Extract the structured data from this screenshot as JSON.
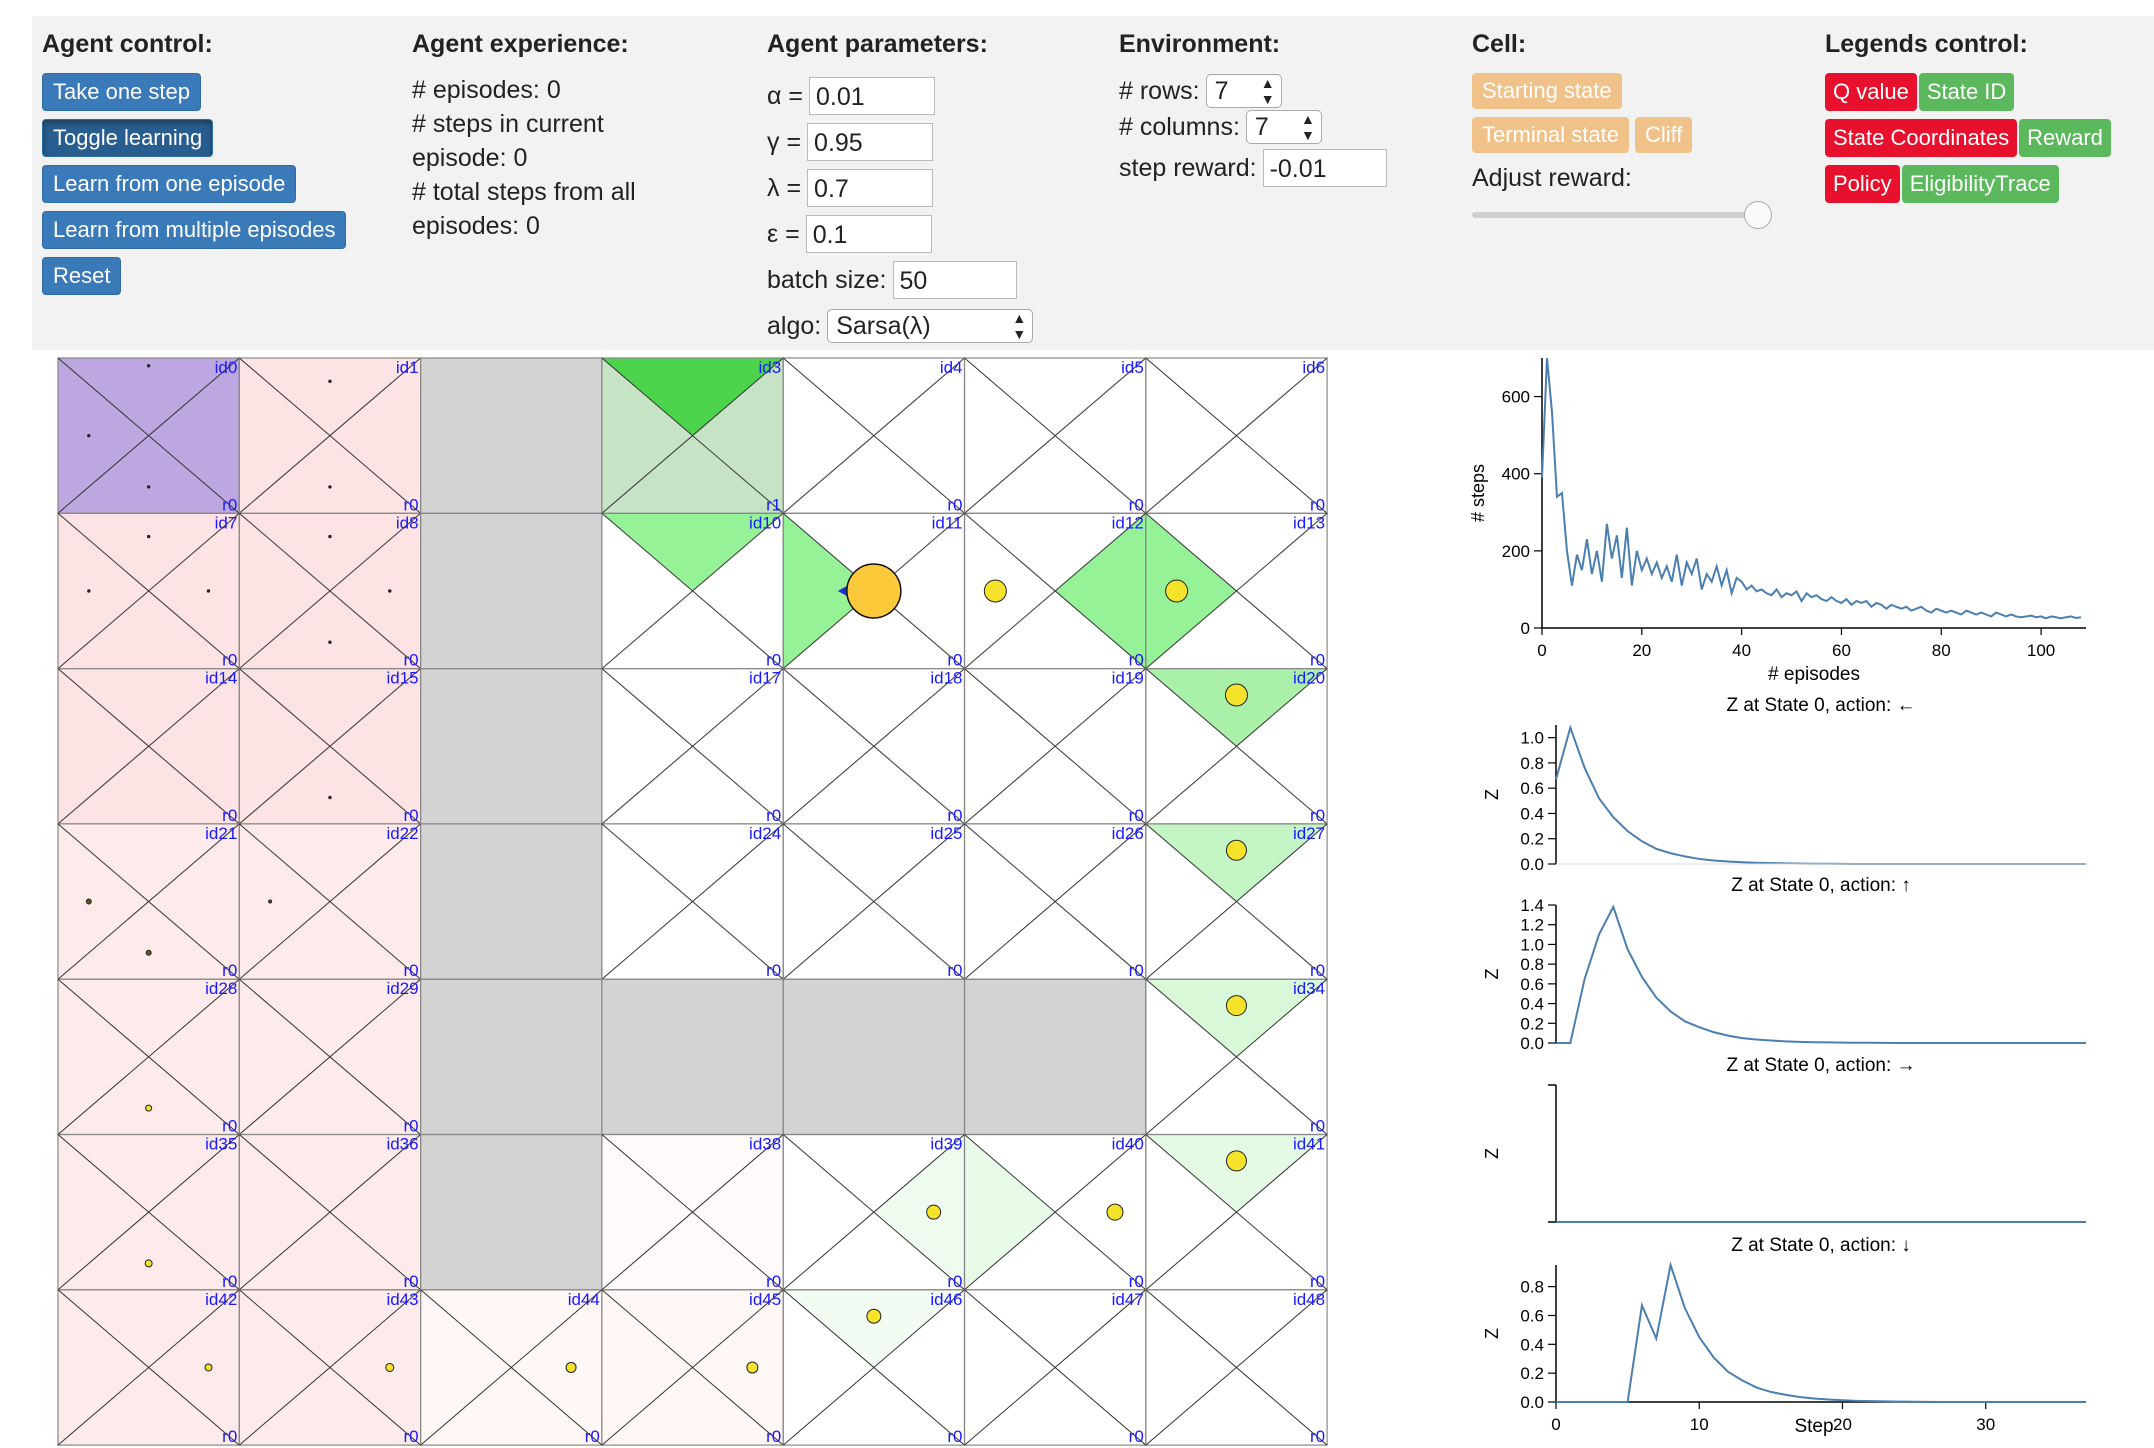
{
  "agent_control": {
    "title": "Agent control:",
    "take_one_step": "Take one step",
    "toggle_learning": "Toggle learning",
    "learn_one_episode": "Learn from one episode",
    "learn_multiple_episodes": "Learn from multiple episodes",
    "reset": "Reset"
  },
  "agent_experience": {
    "title": "Agent experience:",
    "line1": "# episodes: 0",
    "line2": "# steps in current",
    "line3": "episode: 0",
    "line4": "# total steps from all",
    "line5": "episodes: 0"
  },
  "agent_parameters": {
    "title": "Agent parameters:",
    "alpha_label": "α =",
    "alpha_value": "0.01",
    "gamma_label": "γ =",
    "gamma_value": "0.95",
    "lambda_label": "λ =",
    "lambda_value": "0.7",
    "epsilon_label": "ε =",
    "epsilon_value": "0.1",
    "batch_label": "batch size:",
    "batch_value": "50",
    "algo_label": "algo:",
    "algo_value": "Sarsa(λ)"
  },
  "environment": {
    "title": "Environment:",
    "rows_label": "# rows:",
    "rows_value": "7",
    "cols_label": "# columns:",
    "cols_value": "7",
    "step_reward_label": "step reward:",
    "step_reward_value": "-0.01"
  },
  "cell": {
    "title": "Cell:",
    "starting_state": "Starting state",
    "terminal_state": "Terminal state",
    "cliff": "Cliff",
    "adjust_reward": "Adjust reward:",
    "slider_level": 1.0
  },
  "legends_control": {
    "title": "Legends control:",
    "q_value": "Q value",
    "state_id": "State ID",
    "state_coordinates": "State Coordinates",
    "reward": "Reward",
    "policy": "Policy",
    "eligibility_trace": "EligibilityTrace"
  },
  "colors": {
    "blue_button": "#3a7ab8",
    "legend_red": "#e8112d",
    "legend_green": "#5cb85c",
    "cell_button": "#f0c28a",
    "line": "#4a7fb0",
    "cliff": "#d3d3d3"
  },
  "gridworld": {
    "rows": 7,
    "cols": 7,
    "cliff_ids": [
      2,
      9,
      16,
      23,
      30,
      37,
      31,
      32,
      33
    ],
    "start_id": 0,
    "terminal_id": 3,
    "agent_id": 11,
    "terminal_reward_label": "r1",
    "reward_label": "r0",
    "id_prefix": "id"
  },
  "chart_data": [
    {
      "type": "line",
      "xlabel": "# episodes",
      "ylabel": "# steps",
      "xlim": [
        0,
        109
      ],
      "ylim": [
        0,
        700
      ],
      "xticks": [
        0,
        20,
        40,
        60,
        80,
        100
      ],
      "yticks": [
        0,
        200,
        400,
        600
      ],
      "values": [
        390,
        700,
        560,
        340,
        350,
        200,
        110,
        190,
        150,
        230,
        140,
        200,
        120,
        270,
        180,
        240,
        130,
        260,
        110,
        200,
        150,
        180,
        140,
        170,
        130,
        160,
        120,
        190,
        110,
        170,
        140,
        180,
        100,
        140,
        120,
        160,
        110,
        150,
        90,
        130,
        120,
        100,
        110,
        95,
        100,
        90,
        85,
        100,
        80,
        90,
        85,
        95,
        70,
        90,
        80,
        85,
        75,
        70,
        80,
        70,
        65,
        75,
        60,
        70,
        65,
        70,
        55,
        65,
        60,
        50,
        60,
        55,
        50,
        55,
        45,
        50,
        55,
        45,
        40,
        50,
        45,
        40,
        45,
        40,
        35,
        45,
        40,
        35,
        40,
        35,
        30,
        40,
        35,
        30,
        35,
        30,
        28,
        30,
        32,
        28,
        30,
        25,
        30,
        28,
        25,
        28,
        30,
        26,
        28
      ]
    },
    {
      "type": "line",
      "title": "Z at State 0, action: ←",
      "ylabel": "Z",
      "xlim": [
        0,
        37
      ],
      "ylim": [
        0,
        1.1
      ],
      "yticks": [
        0.0,
        0.2,
        0.4,
        0.6,
        0.8,
        1.0
      ],
      "ytick_labels": [
        "0.0",
        "0.2",
        "0.4",
        "0.6",
        "0.8",
        "1.0"
      ],
      "values": [
        0.67,
        1.08,
        0.76,
        0.52,
        0.37,
        0.26,
        0.18,
        0.12,
        0.085,
        0.06,
        0.04,
        0.028,
        0.02,
        0.014,
        0.01,
        0.007,
        0.005,
        0.003,
        0.002,
        0.0015,
        0.001,
        0,
        0,
        0,
        0,
        0,
        0,
        0,
        0,
        0,
        0,
        0,
        0,
        0,
        0,
        0,
        0,
        0
      ]
    },
    {
      "type": "line",
      "title": "Z at State 0, action: ↑",
      "ylabel": "Z",
      "xlim": [
        0,
        37
      ],
      "ylim": [
        0,
        1.4
      ],
      "yticks": [
        0.0,
        0.2,
        0.4,
        0.6,
        0.8,
        1.0,
        1.2,
        1.4
      ],
      "ytick_labels": [
        "0.0",
        "0.2",
        "0.4",
        "0.6",
        "0.8",
        "1.0",
        "1.2",
        "1.4"
      ],
      "values": [
        0,
        0,
        0.65,
        1.1,
        1.38,
        0.95,
        0.67,
        0.46,
        0.32,
        0.22,
        0.16,
        0.11,
        0.075,
        0.05,
        0.036,
        0.025,
        0.017,
        0.012,
        0.008,
        0.006,
        0.004,
        0.003,
        0.002,
        0.001,
        0,
        0,
        0,
        0,
        0,
        0,
        0,
        0,
        0,
        0,
        0,
        0,
        0,
        0
      ]
    },
    {
      "type": "line",
      "title": "Z at State 0, action: →",
      "ylabel": "Z",
      "xlim": [
        0,
        37
      ],
      "ylim": [
        0,
        1
      ],
      "yticks": [],
      "ytick_labels": [],
      "values": [
        0,
        0,
        0,
        0,
        0,
        0,
        0,
        0,
        0,
        0,
        0,
        0,
        0,
        0,
        0,
        0,
        0,
        0,
        0,
        0,
        0,
        0,
        0,
        0,
        0,
        0,
        0,
        0,
        0,
        0,
        0,
        0,
        0,
        0,
        0,
        0,
        0,
        0
      ]
    },
    {
      "type": "line",
      "title": "Z at State 0, action: ↓",
      "ylabel": "Z",
      "xlabel": "Step",
      "xlim": [
        0,
        37
      ],
      "ylim": [
        0,
        0.95
      ],
      "xticks": [
        0,
        10,
        20,
        30
      ],
      "xtick_labels": [
        "0",
        "10",
        "20",
        "30"
      ],
      "yticks": [
        0.0,
        0.2,
        0.4,
        0.6,
        0.8
      ],
      "ytick_labels": [
        "0.0",
        "0.2",
        "0.4",
        "0.6",
        "0.8"
      ],
      "values": [
        0,
        0,
        0,
        0,
        0,
        0,
        0.67,
        0.44,
        0.95,
        0.65,
        0.45,
        0.31,
        0.21,
        0.15,
        0.1,
        0.07,
        0.05,
        0.035,
        0.024,
        0.017,
        0.012,
        0.008,
        0.006,
        0.004,
        0.003,
        0.002,
        0.001,
        0,
        0,
        0,
        0,
        0,
        0,
        0,
        0,
        0,
        0,
        0
      ]
    }
  ]
}
